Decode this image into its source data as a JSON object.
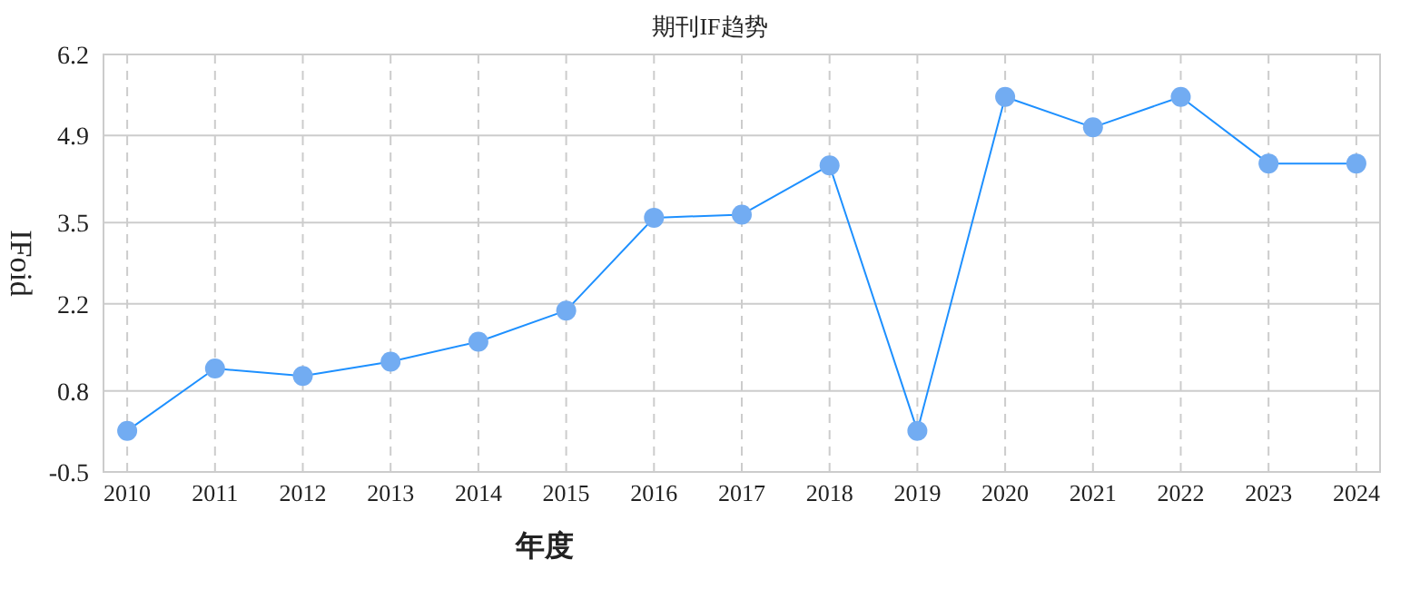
{
  "chart_data": {
    "type": "line",
    "title": "期刊IF趋势",
    "xlabel": "年度",
    "ylabel": "IFoid",
    "categories": [
      "2010",
      "2011",
      "2012",
      "2013",
      "2014",
      "2015",
      "2016",
      "2017",
      "2018",
      "2019",
      "2020",
      "2021",
      "2022",
      "2023",
      "2024"
    ],
    "series": [
      {
        "color": "#1e90ff",
        "values": [
          0.16,
          1.16,
          1.04,
          1.27,
          1.59,
          2.09,
          3.58,
          3.63,
          4.42,
          0.16,
          5.52,
          5.03,
          5.52,
          4.45,
          4.45
        ]
      }
    ],
    "ylim": [
      -0.5,
      6.2
    ],
    "yticks": [
      -0.5,
      0.8,
      2.2,
      3.5,
      4.9,
      6.2
    ],
    "grid": true,
    "marker": "circle",
    "line_style": "solid"
  }
}
